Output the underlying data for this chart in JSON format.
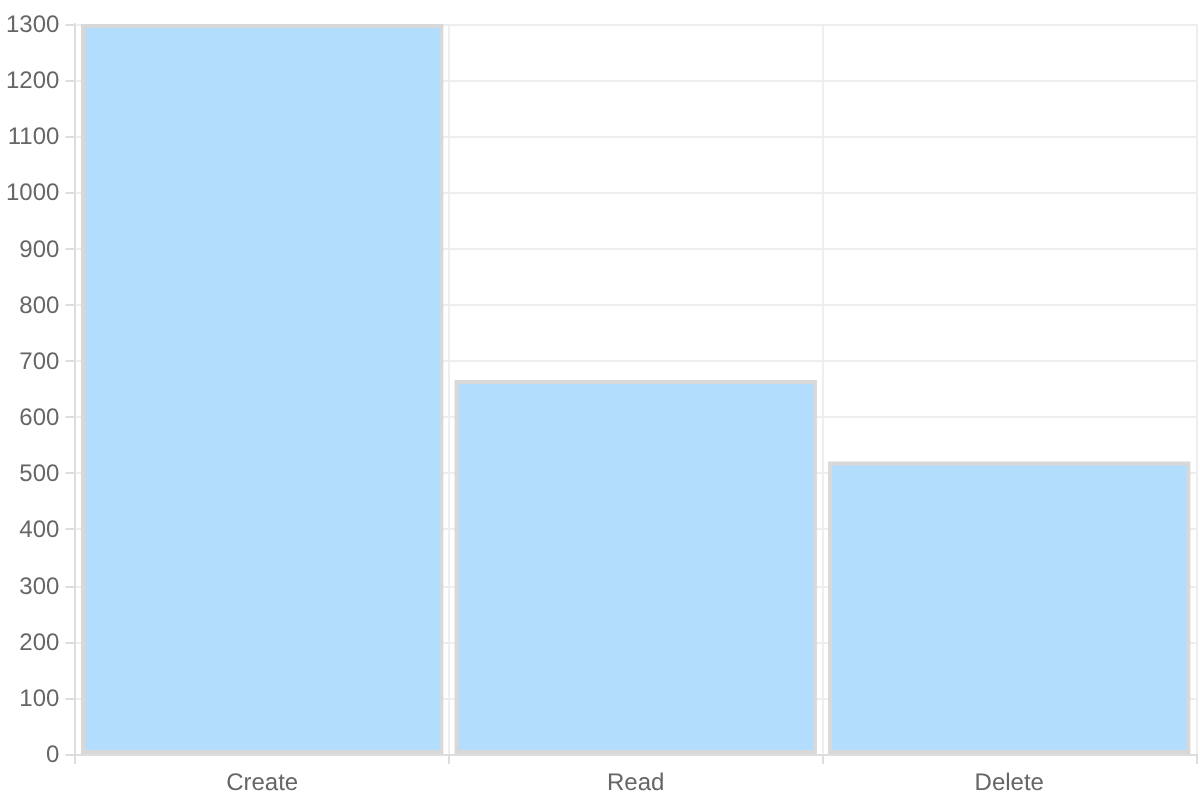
{
  "chart_data": {
    "type": "bar",
    "categories": [
      "Create",
      "Read",
      "Delete"
    ],
    "values": [
      1300,
      666,
      521
    ],
    "color": "#b3ddfd",
    "ylim": [
      0,
      1300
    ],
    "yticks": [
      0,
      100,
      200,
      300,
      400,
      500,
      600,
      700,
      800,
      900,
      1000,
      1100,
      1200,
      1300
    ],
    "grid": true
  }
}
